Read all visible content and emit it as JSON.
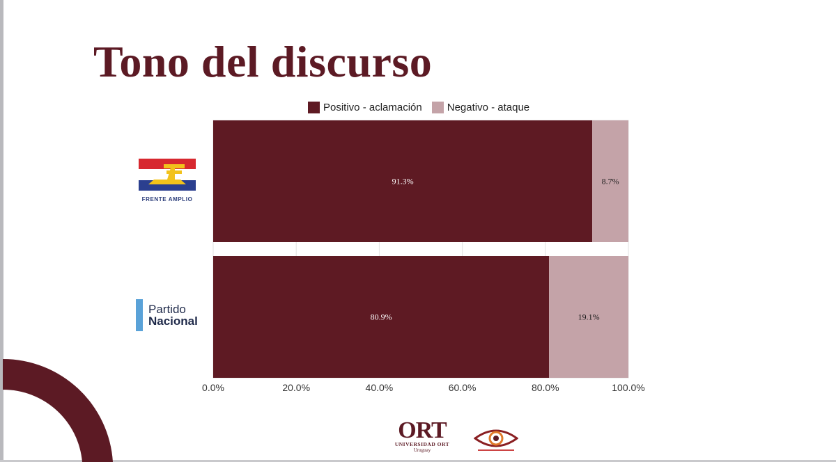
{
  "page": {
    "title": "Tono del discurso"
  },
  "legend": [
    {
      "label": "Positivo - aclamación",
      "color": "#5e1a23"
    },
    {
      "label": "Negativo - ataque",
      "color": "#c4a3a8"
    }
  ],
  "logos": {
    "frente_amplio": {
      "caption": "FRENTE AMPLIO"
    },
    "partido_nacional": {
      "line1": "Partido",
      "line2": "Nacional"
    },
    "ort": {
      "mark": "ORT",
      "line1": "UNIVERSIDAD ORT",
      "line2": "Uruguay"
    }
  },
  "chart_data": {
    "type": "bar",
    "orientation": "horizontal",
    "stacked": true,
    "categories": [
      "Frente Amplio",
      "Partido Nacional"
    ],
    "series": [
      {
        "name": "Positivo - aclamación",
        "values": [
          91.3,
          80.9
        ],
        "labels": [
          "91.3%",
          "80.9%"
        ],
        "color": "#5e1a23",
        "label_color": "#ffffff"
      },
      {
        "name": "Negativo - ataque",
        "values": [
          8.7,
          19.1
        ],
        "labels": [
          "8.7%",
          "19.1%"
        ],
        "color": "#c4a3a8",
        "label_color": "#1a1a1a"
      }
    ],
    "x_ticks": [
      "0.0%",
      "20.0%",
      "40.0%",
      "60.0%",
      "80.0%",
      "100.0%"
    ],
    "xlim": [
      0,
      100
    ],
    "grid": true,
    "legend_position": "top"
  }
}
